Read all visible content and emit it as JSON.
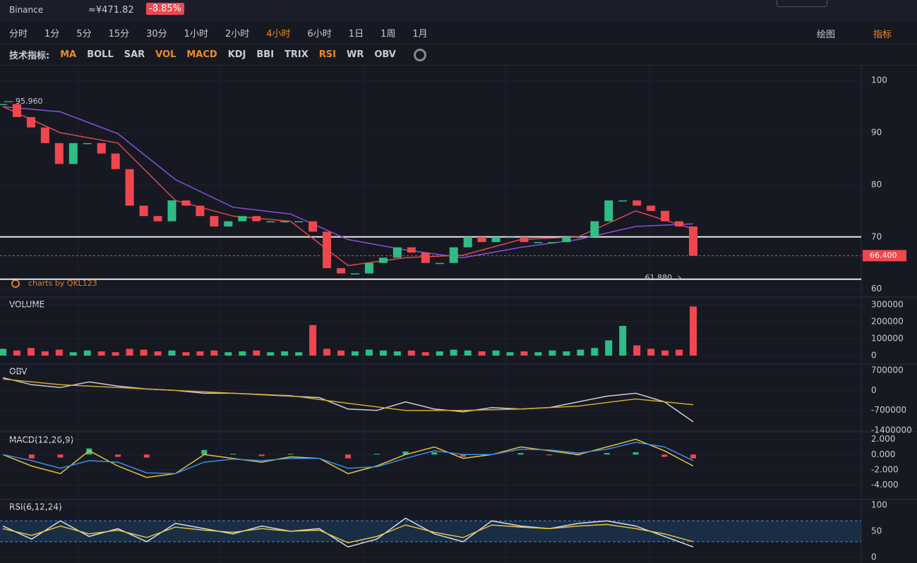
{
  "header": {
    "exchange": "Binance",
    "price": "≈¥471.82",
    "change": "-8.85%"
  },
  "toolbar": {
    "intervals": [
      "分时",
      "1分",
      "5分",
      "15分",
      "30分",
      "1小时",
      "2小时",
      "4小时",
      "6小时",
      "1日",
      "1周",
      "1月"
    ],
    "active": "4小时",
    "tools": [
      "绘图",
      "指标"
    ],
    "active_tool": "指标"
  },
  "indicators": {
    "label": "技术指标:",
    "items": [
      "MA",
      "BOLL",
      "SAR",
      "VOL",
      "MACD",
      "KDJ",
      "BBI",
      "TRIX",
      "RSI",
      "WR",
      "OBV"
    ],
    "active": [
      "MA",
      "VOL",
      "MACD",
      "RSI"
    ]
  },
  "chart_data": [
    {
      "type": "candlestick",
      "up_color": "#2ebd85",
      "down_color": "#f0474f",
      "ylim": [
        58.6,
        102.6
      ],
      "yticks": [
        60,
        70,
        80,
        90,
        100
      ],
      "values": [
        95.5,
        93,
        91,
        88,
        84,
        88,
        88,
        86,
        83,
        76,
        74,
        73,
        77,
        76,
        74,
        72,
        73,
        74,
        73,
        73,
        73,
        73,
        71,
        64,
        63,
        63,
        65,
        66,
        68,
        67,
        65,
        65,
        68,
        70,
        69,
        70,
        70,
        69,
        69,
        69,
        70,
        70,
        73,
        77,
        77,
        76,
        75,
        73,
        72,
        66.4
      ],
      "ma": [
        {
          "color": "#8b4fe0",
          "values": [
            95,
            94,
            89.8,
            81,
            75.7,
            74.4,
            69.5,
            67.5,
            66,
            68,
            69.5,
            72,
            72.5
          ]
        },
        {
          "color": "#e0474f",
          "values": [
            95,
            90,
            88,
            77,
            74,
            73,
            64.5,
            66,
            66.5,
            69.5,
            70,
            75,
            71.5
          ]
        }
      ],
      "hlines": [
        70,
        61.88
      ],
      "high": {
        "value": 95.96,
        "label": "95.960"
      },
      "low": {
        "value": 61.88,
        "label": "61.880"
      },
      "last": {
        "value": 66.4,
        "label": "66.400"
      },
      "watermark": "charts by QKL123"
    },
    {
      "type": "volume",
      "title": "VOLUME",
      "ylim": [
        -45800,
        341700
      ],
      "yticks": [
        0,
        100000,
        200000,
        300000
      ],
      "values": [
        40000,
        30000,
        45000,
        25000,
        35000,
        20000,
        30000,
        25000,
        20000,
        40000,
        35000,
        25000,
        30000,
        20000,
        25000,
        30000,
        20000,
        25000,
        30000,
        20000,
        25000,
        20000,
        180000,
        40000,
        30000,
        25000,
        35000,
        30000,
        25000,
        30000,
        20000,
        25000,
        35000,
        30000,
        25000,
        30000,
        20000,
        25000,
        20000,
        30000,
        25000,
        35000,
        45000,
        90000,
        175000,
        60000,
        40000,
        30000,
        35000,
        290000
      ]
    },
    {
      "type": "line",
      "title": "OBV",
      "ylim": [
        -1400000,
        900000
      ],
      "yticks": [
        -1400000,
        -700000,
        0,
        700000
      ],
      "lines": [
        {
          "color": "#c9ccd4",
          "values": [
            450000,
            200000,
            100000,
            300000,
            150000,
            50000,
            0,
            -100000,
            -100000,
            -150000,
            -200000,
            -250000,
            -650000,
            -700000,
            -400000,
            -650000,
            -750000,
            -600000,
            -650000,
            -600000,
            -400000,
            -200000,
            -100000,
            -400000,
            -1100000
          ]
        },
        {
          "color": "#d4a72c",
          "values": [
            400000,
            200000,
            100000,
            0,
            -100000,
            -180000,
            -450000,
            -700000,
            -700000,
            -650000,
            -550000,
            -300000,
            -500000
          ]
        }
      ]
    },
    {
      "type": "macd",
      "title": "MACD(12,26,9)",
      "ylim": [
        -5.8,
        2.8
      ],
      "yticks": [
        {
          "value": -4,
          "label": "-4.000"
        },
        {
          "value": -2,
          "label": "-2.000"
        },
        {
          "value": 0,
          "label": "0.000"
        },
        {
          "value": 2,
          "label": "2.000"
        }
      ],
      "lines": [
        {
          "color": "#e8c13a",
          "values": [
            0,
            -1.5,
            -2.5,
            0.5,
            -1.5,
            -3,
            -2.5,
            0,
            -0.5,
            -1,
            -0.3,
            -0.5,
            -2.5,
            -1.5,
            0,
            1,
            -0.5,
            0,
            1,
            0.5,
            0,
            1,
            2,
            0.5,
            -1.5
          ]
        },
        {
          "color": "#3a8ee8",
          "values": [
            0,
            -0.8,
            -1.8,
            -0.8,
            -1,
            -2.4,
            -2.5,
            -1,
            -0.6,
            -0.8,
            -0.5,
            -0.5,
            -1.8,
            -1.6,
            -0.5,
            0.5,
            0,
            0,
            0.7,
            0.6,
            0.2,
            0.7,
            1.6,
            1,
            -0.8
          ]
        }
      ],
      "histogram": [
        0,
        -0.5,
        -0.4,
        0.8,
        -0.3,
        -0.4,
        0,
        0.6,
        0.1,
        -0.2,
        0.1,
        0,
        -0.5,
        0.1,
        0.4,
        0.3,
        -0.3,
        0,
        0.2,
        -0.1,
        -0.1,
        0.2,
        0.3,
        -0.3,
        -0.5
      ]
    },
    {
      "type": "rsi",
      "title": "RSI(6,12,24)",
      "ylim": [
        -10.8,
        109.5
      ],
      "yticks": [
        0,
        50,
        100
      ],
      "levels": [
        30,
        70
      ],
      "lines": [
        {
          "color": "#d8dbe2",
          "values": [
            60,
            35,
            70,
            40,
            55,
            30,
            65,
            55,
            45,
            60,
            50,
            55,
            20,
            35,
            75,
            45,
            30,
            70,
            60,
            55,
            65,
            70,
            60,
            40,
            20
          ]
        },
        {
          "color": "#e8c13a",
          "values": [
            55,
            42,
            60,
            45,
            52,
            38,
            58,
            52,
            48,
            55,
            50,
            52,
            28,
            40,
            62,
            48,
            38,
            62,
            58,
            55,
            60,
            63,
            55,
            45,
            30
          ]
        }
      ]
    }
  ]
}
